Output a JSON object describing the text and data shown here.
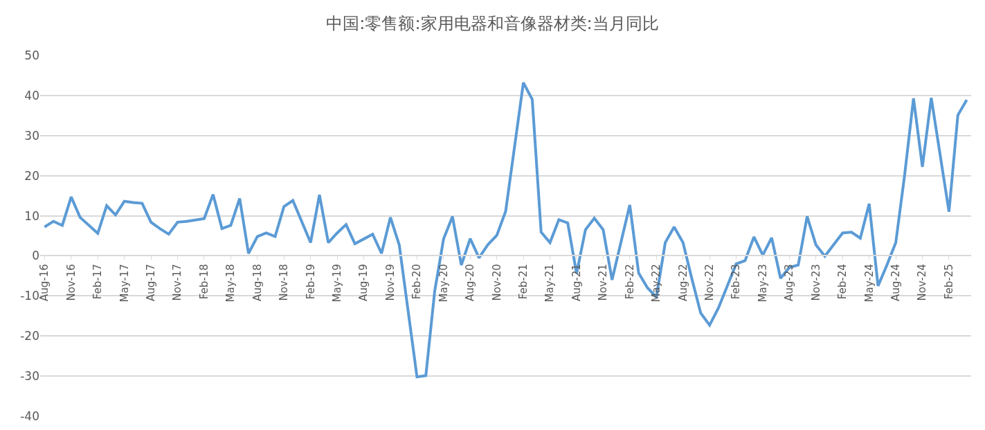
{
  "chart_data": {
    "type": "line",
    "title": "中国:零售额:家用电器和音像器材类:当月同比",
    "categories": [
      "Aug-16",
      null,
      null,
      "Nov-16",
      null,
      null,
      "Feb-17",
      null,
      null,
      "May-17",
      null,
      null,
      "Aug-17",
      null,
      null,
      "Nov-17",
      null,
      null,
      "Feb-18",
      null,
      null,
      "May-18",
      null,
      null,
      "Aug-18",
      null,
      null,
      "Nov-18",
      null,
      null,
      "Feb-19",
      null,
      null,
      "May-19",
      null,
      null,
      "Aug-19",
      null,
      null,
      "Nov-19",
      null,
      null,
      "Feb-20",
      null,
      null,
      "May-20",
      null,
      null,
      "Aug-20",
      null,
      null,
      "Nov-20",
      null,
      null,
      "Feb-21",
      null,
      null,
      "May-21",
      null,
      null,
      "Aug-21",
      null,
      null,
      "Nov-21",
      null,
      null,
      "Feb-22",
      null,
      null,
      "May-22",
      null,
      null,
      "Aug-22",
      null,
      null,
      "Nov-22",
      null,
      null,
      "Feb-23",
      null,
      null,
      "May-23",
      null,
      null,
      "Aug-23",
      null,
      null,
      "Nov-23",
      null,
      null,
      "Feb-24",
      null,
      null,
      "May-24",
      null,
      null,
      "Aug-24",
      null,
      null,
      "Nov-24",
      null,
      null,
      "Feb-25",
      null,
      null
    ],
    "series": [
      {
        "color": "#5b9bd5",
        "values": [
          7.2,
          8.6,
          7.6,
          14.7,
          9.6,
          null,
          5.6,
          12.5,
          10.2,
          13.6,
          13.3,
          13.1,
          8.4,
          6.8,
          5.4,
          8.4,
          8.6,
          null,
          9.3,
          15.3,
          6.8,
          7.6,
          14.3,
          0.6,
          4.8,
          5.7,
          4.8,
          12.3,
          13.8,
          null,
          3.3,
          15.2,
          3.3,
          5.7,
          7.8,
          3.0,
          4.2,
          5.4,
          0.6,
          9.6,
          2.7,
          null,
          -30.2,
          -29.9,
          -8.8,
          4.2,
          9.8,
          -2.3,
          4.3,
          -0.5,
          2.8,
          5.1,
          11.1,
          null,
          43.2,
          39.0,
          5.9,
          3.3,
          9.0,
          8.2,
          -4.4,
          6.5,
          9.4,
          6.5,
          -6.0,
          null,
          12.7,
          -4.3,
          -8.0,
          -10.3,
          3.3,
          7.2,
          3.3,
          -5.7,
          -14.3,
          -17.3,
          -13,
          null,
          -2.0,
          -1.2,
          4.7,
          0.2,
          4.5,
          -5.6,
          -2.9,
          -2.3,
          9.8,
          2.7,
          -0.1,
          null,
          5.7,
          5.9,
          4.4,
          13.0,
          -7.5,
          -2.3,
          3.3,
          20.2,
          39.3,
          22.2,
          39.4,
          null,
          11.0,
          35.1,
          38.9
        ]
      }
    ],
    "ylim": [
      -40,
      50
    ],
    "yticks": [
      -40,
      -30,
      -20,
      -10,
      0,
      10,
      20,
      30,
      40,
      50
    ],
    "grid": "y",
    "marker": "none",
    "line_style": "solid"
  }
}
